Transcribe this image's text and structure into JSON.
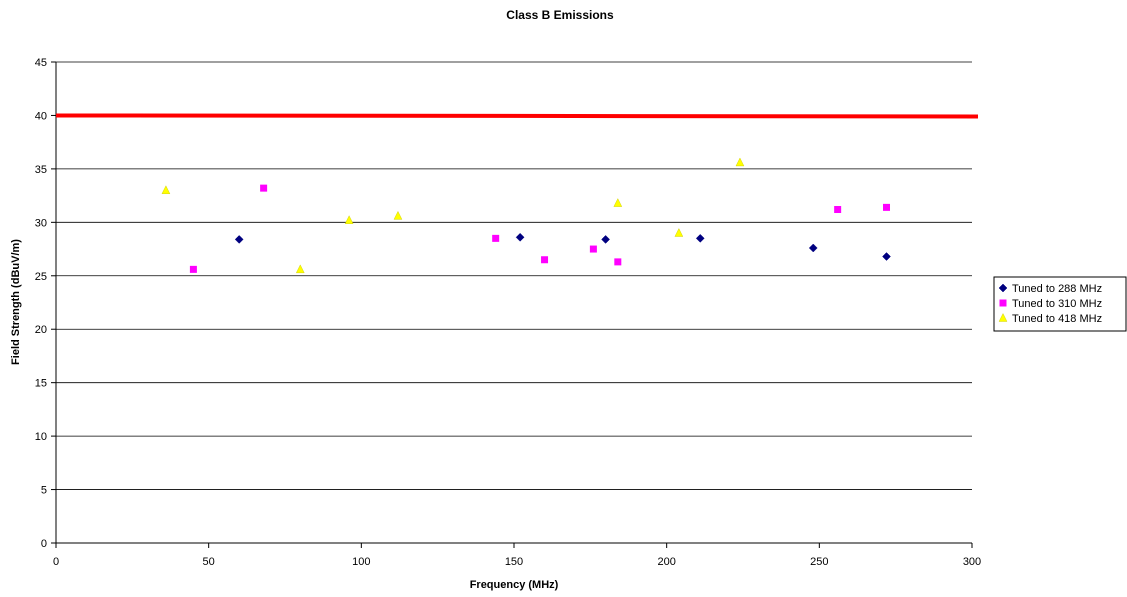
{
  "chart_data": {
    "type": "scatter",
    "title": "Class B Emissions",
    "xlabel": "Frequency (MHz)",
    "ylabel": "Field Strength (dBuV/m)",
    "xlim": [
      0,
      300
    ],
    "ylim": [
      0,
      45
    ],
    "xticks": [
      0,
      50,
      100,
      150,
      200,
      250,
      300
    ],
    "yticks": [
      0,
      5,
      10,
      15,
      20,
      25,
      30,
      35,
      40,
      45
    ],
    "grid": "horizontal",
    "legend_position": "right",
    "limit_line": {
      "y": 40,
      "color": "#ff0000"
    },
    "series": [
      {
        "name": "Tuned to 288 MHz",
        "marker": "diamond",
        "color": "#000080",
        "points": [
          [
            60,
            28.4
          ],
          [
            152,
            28.6
          ],
          [
            180,
            28.4
          ],
          [
            211,
            28.5
          ],
          [
            248,
            27.6
          ],
          [
            272,
            26.8
          ]
        ]
      },
      {
        "name": "Tuned to 310 MHz",
        "marker": "square",
        "color": "#ff00ff",
        "points": [
          [
            45,
            25.6
          ],
          [
            68,
            33.2
          ],
          [
            144,
            28.5
          ],
          [
            160,
            26.5
          ],
          [
            176,
            27.5
          ],
          [
            184,
            26.3
          ],
          [
            256,
            31.2
          ],
          [
            272,
            31.4
          ]
        ]
      },
      {
        "name": "Tuned to 418 MHz",
        "marker": "triangle",
        "color": "#ffff00",
        "points": [
          [
            36,
            33.0
          ],
          [
            80,
            25.6
          ],
          [
            96,
            30.2
          ],
          [
            112,
            30.6
          ],
          [
            184,
            31.8
          ],
          [
            204,
            29.0
          ],
          [
            224,
            35.6
          ]
        ]
      }
    ]
  }
}
